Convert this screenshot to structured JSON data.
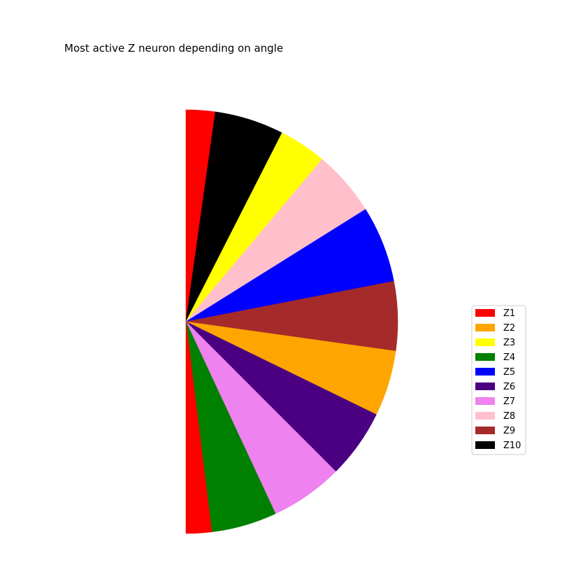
{
  "chart_data": {
    "type": "pie",
    "title": "Most active Z neuron depending on angle",
    "angle_unit": "degrees",
    "angle_convention": "measured clockwise from straight up",
    "legend_position": "right",
    "colors": {
      "Z1": "#ff0000",
      "Z2": "#ffa500",
      "Z3": "#ffff00",
      "Z4": "#008000",
      "Z5": "#0000ff",
      "Z6": "#4b0082",
      "Z7": "#ee82ee",
      "Z8": "#ffc0cb",
      "Z9": "#a52a2a",
      "Z10": "#000000"
    },
    "legend": [
      "Z1",
      "Z2",
      "Z3",
      "Z4",
      "Z5",
      "Z6",
      "Z7",
      "Z8",
      "Z9",
      "Z10"
    ],
    "sectors": [
      {
        "label": "Z1",
        "start": 0,
        "end": 8
      },
      {
        "label": "Z10",
        "start": 8,
        "end": 27
      },
      {
        "label": "Z3",
        "start": 27,
        "end": 40
      },
      {
        "label": "Z8",
        "start": 40,
        "end": 58
      },
      {
        "label": "Z5",
        "start": 58,
        "end": 79
      },
      {
        "label": "Z9",
        "start": 79,
        "end": 98
      },
      {
        "label": "Z2",
        "start": 98,
        "end": 116
      },
      {
        "label": "Z6",
        "start": 116,
        "end": 135
      },
      {
        "label": "Z7",
        "start": 135,
        "end": 155
      },
      {
        "label": "Z4",
        "start": 155,
        "end": 173
      },
      {
        "label": "Z1",
        "start": 173,
        "end": 180
      }
    ]
  }
}
